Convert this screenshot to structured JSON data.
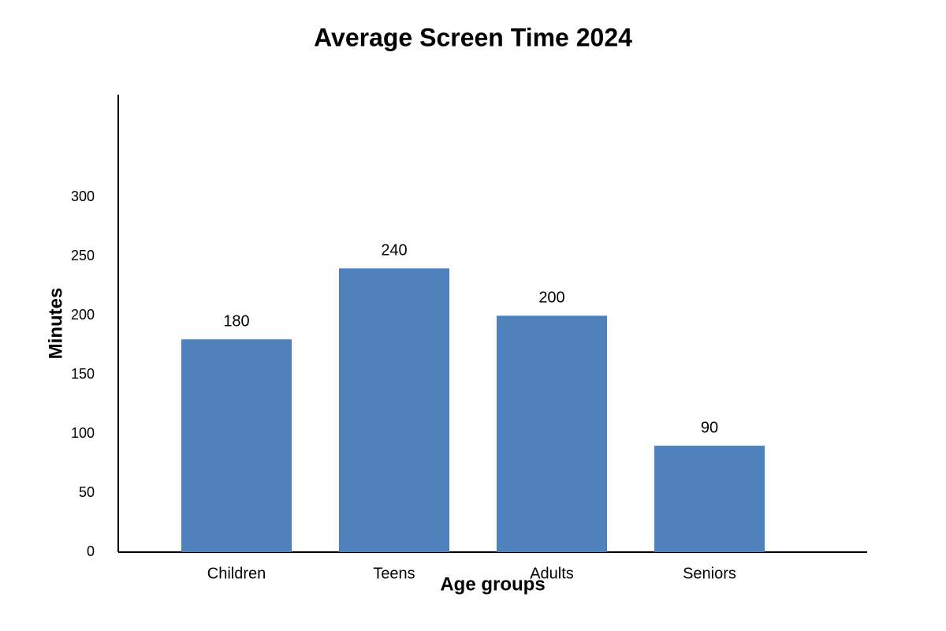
{
  "chart_data": {
    "type": "bar",
    "title": "Average Screen Time 2024",
    "x_label": "Age groups",
    "y_label": "Minutes",
    "categories": [
      "Children",
      "Teens",
      "Adults",
      "Seniors"
    ],
    "values": [
      180,
      240,
      200,
      90
    ],
    "color": "#4f81bd",
    "ylim": [
      0,
      387
    ],
    "yticks": [
      0,
      50,
      100,
      150,
      200,
      250,
      300
    ],
    "grid": false
  }
}
